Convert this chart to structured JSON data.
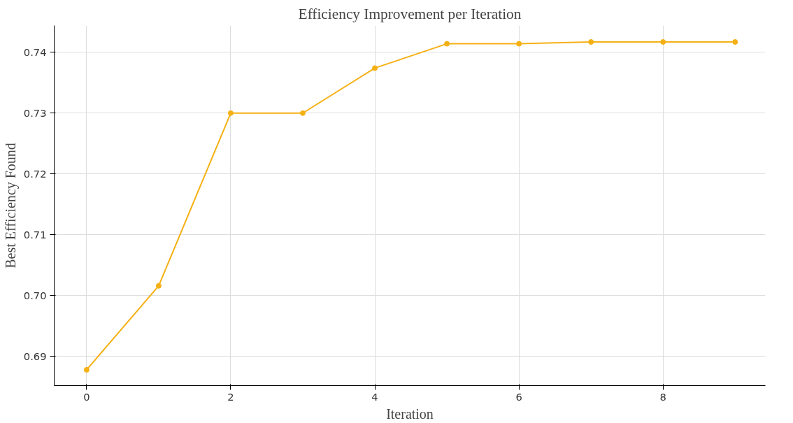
{
  "chart_data": {
    "type": "line",
    "title": "Efficiency Improvement per Iteration",
    "xlabel": "Iteration",
    "ylabel": "Best Efficiency Found",
    "x": [
      0,
      1,
      2,
      3,
      4,
      5,
      6,
      7,
      8,
      9
    ],
    "series": [
      {
        "color": "#f5b014",
        "values": [
          0.6878,
          0.7016,
          0.73,
          0.73,
          0.7374,
          0.7414,
          0.7414,
          0.7417,
          0.7417,
          0.7417
        ]
      }
    ],
    "xlim": [
      -0.45,
      9.42
    ],
    "ylim": [
      0.6852,
      0.7444
    ],
    "xticks": [
      0,
      2,
      4,
      6,
      8
    ],
    "yticks": [
      {
        "value": 0.69,
        "label": "0.69"
      },
      {
        "value": 0.7,
        "label": "0.70"
      },
      {
        "value": 0.71,
        "label": "0.71"
      },
      {
        "value": 0.72,
        "label": "0.72"
      },
      {
        "value": 0.73,
        "label": "0.73"
      },
      {
        "value": 0.74,
        "label": "0.74"
      }
    ],
    "grid": true,
    "marker": "circle",
    "line_style": "solid"
  }
}
